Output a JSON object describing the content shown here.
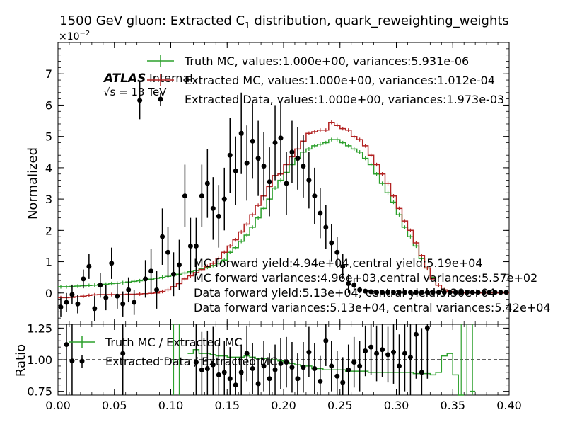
{
  "chart_data": [
    {
      "type": "line",
      "title": "1500 GeV gluon: Extracted C",
      "title_sub": "1",
      "title_rest": " distribution, quark_reweighting_weights",
      "ylabel": "Normalized",
      "y_exponent": "×10",
      "y_exponent_power": "−2",
      "xlim": [
        0.0,
        0.4
      ],
      "ylim": [
        -1.0,
        8.0
      ],
      "yticks": [
        0,
        1,
        2,
        3,
        4,
        5,
        6,
        7
      ],
      "ytick_labels": [
        "0",
        "1",
        "2",
        "3",
        "4",
        "5",
        "6",
        "7"
      ],
      "x": [
        0.0025,
        0.0075,
        0.0125,
        0.0175,
        0.0225,
        0.0275,
        0.0325,
        0.0375,
        0.0425,
        0.0475,
        0.0525,
        0.0575,
        0.0625,
        0.0675,
        0.0725,
        0.0775,
        0.0825,
        0.0875,
        0.0925,
        0.0975,
        0.1025,
        0.1075,
        0.1125,
        0.1175,
        0.1225,
        0.1275,
        0.1325,
        0.1375,
        0.1425,
        0.1475,
        0.1525,
        0.1575,
        0.1625,
        0.1675,
        0.1725,
        0.1775,
        0.1825,
        0.1875,
        0.1925,
        0.1975,
        0.2025,
        0.2075,
        0.2125,
        0.2175,
        0.2225,
        0.2275,
        0.2325,
        0.2375,
        0.2425,
        0.2475,
        0.2525,
        0.2575,
        0.2625,
        0.2675,
        0.2725,
        0.2775,
        0.2825,
        0.2875,
        0.2925,
        0.2975,
        0.3025,
        0.3075,
        0.3125,
        0.3175,
        0.3225,
        0.3275,
        0.3325,
        0.3375,
        0.3425,
        0.3475,
        0.3525,
        0.3575,
        0.3625,
        0.3675,
        0.3725,
        0.3775,
        0.3825,
        0.3875,
        0.3925,
        0.3975
      ],
      "series": [
        {
          "name": "Truth MC, values:1.000e+00, variances:5.931e-06",
          "color": "#2ca02c",
          "values": [
            0.2,
            0.2,
            0.21,
            0.22,
            0.23,
            0.24,
            0.25,
            0.27,
            0.28,
            0.3,
            0.31,
            0.33,
            0.35,
            0.37,
            0.39,
            0.42,
            0.44,
            0.47,
            0.5,
            0.53,
            0.57,
            0.6,
            0.64,
            0.68,
            0.72,
            0.77,
            0.82,
            0.88,
            0.95,
            1.05,
            1.3,
            1.45,
            1.65,
            1.85,
            2.1,
            2.4,
            2.7,
            3.0,
            3.35,
            3.6,
            3.85,
            4.1,
            4.3,
            4.5,
            4.6,
            4.7,
            4.75,
            4.8,
            4.9,
            4.9,
            4.8,
            4.7,
            4.6,
            4.5,
            4.3,
            4.1,
            3.8,
            3.5,
            3.2,
            2.9,
            2.5,
            2.1,
            1.8,
            1.5,
            1.1,
            0.8,
            0.5,
            0.25,
            0.1,
            0.05,
            0.02,
            0.0,
            0.0,
            0.0,
            0.0,
            0.0,
            0.0,
            0.0,
            0.0,
            0.0
          ]
        },
        {
          "name": "Extracted MC, values:1.000e+00, variances:1.012e-04",
          "color": "#b22222",
          "values": [
            -0.15,
            -0.15,
            -0.14,
            -0.12,
            -0.1,
            -0.08,
            -0.06,
            -0.05,
            -0.05,
            -0.05,
            -0.05,
            -0.05,
            -0.04,
            -0.04,
            -0.03,
            -0.02,
            -0.01,
            0.0,
            0.05,
            0.1,
            0.2,
            0.3,
            0.45,
            0.55,
            0.65,
            0.75,
            0.85,
            0.95,
            1.1,
            1.3,
            1.5,
            1.7,
            1.95,
            2.2,
            2.5,
            2.8,
            3.1,
            3.4,
            3.75,
            3.8,
            4.1,
            4.35,
            4.6,
            4.85,
            5.1,
            5.15,
            5.2,
            5.2,
            5.45,
            5.35,
            5.25,
            5.2,
            5.0,
            4.9,
            4.7,
            4.4,
            4.1,
            3.8,
            3.5,
            3.1,
            2.7,
            2.3,
            2.0,
            1.6,
            1.2,
            0.8,
            0.45,
            0.25,
            0.1,
            0.05,
            0.02,
            0.0,
            0.0,
            0.0,
            0.0,
            0.0,
            0.0,
            0.0,
            0.0,
            0.0
          ]
        },
        {
          "name": "Extracted Data, values:1.000e+00, variances:1.973e-03",
          "color": "#000000",
          "values": [
            -0.45,
            -0.3,
            -0.05,
            -0.35,
            0.45,
            0.85,
            -0.5,
            0.25,
            -0.15,
            0.95,
            -0.1,
            -0.35,
            0.1,
            -0.3,
            6.15,
            0.45,
            0.7,
            0.1,
            1.8,
            1.3,
            0.6,
            0.9,
            3.1,
            1.5,
            1.5,
            3.1,
            3.5,
            2.7,
            2.45,
            3.0,
            4.4,
            3.9,
            5.1,
            4.15,
            4.85,
            4.3,
            4.05,
            3.55,
            4.8,
            4.95,
            3.5,
            4.5,
            4.3,
            4.05,
            3.6,
            3.1,
            2.55,
            2.1,
            1.6,
            1.3,
            0.85,
            0.3,
            0.25,
            0.1,
            0.06,
            0.04,
            0.02,
            0.02,
            0.02,
            0.02,
            0.02,
            0.02,
            0.02,
            0.02,
            0.02,
            0.02,
            0.02,
            0.02,
            0.02,
            0.02,
            0.02,
            0.02,
            0.02,
            0.02,
            0.02,
            0.02,
            0.02,
            0.02,
            0.02,
            0.02
          ],
          "errors": [
            0.3,
            0.3,
            0.3,
            0.3,
            0.3,
            0.4,
            0.4,
            0.4,
            0.4,
            0.5,
            0.4,
            0.4,
            0.4,
            0.4,
            0.6,
            0.6,
            0.7,
            0.6,
            0.9,
            0.8,
            0.7,
            0.8,
            1.0,
            0.9,
            0.9,
            1.0,
            1.1,
            1.0,
            1.0,
            1.0,
            1.2,
            1.1,
            1.3,
            1.2,
            1.2,
            1.2,
            1.1,
            1.1,
            1.2,
            1.2,
            1.0,
            1.0,
            1.0,
            1.0,
            0.9,
            0.9,
            0.8,
            0.7,
            0.6,
            0.5,
            0.4,
            0.3,
            0.2,
            0.1,
            0.05,
            0.03,
            0.02,
            0.02,
            0.02,
            0.02,
            0.02,
            0.02,
            0.02,
            0.02,
            0.02,
            0.02,
            0.02,
            0.02,
            0.02,
            0.02,
            0.02,
            0.02,
            0.02,
            0.02,
            0.02,
            0.02,
            0.02,
            0.02,
            0.02,
            0.02
          ]
        }
      ],
      "legend_placement": "top-center",
      "atlas_label": "ATLAS",
      "atlas_sub": "Internal",
      "energy_label": "√s = 13 TeV",
      "annotations": [
        "MC forward yield:4.94e+04,central yield:5.19e+04",
        "MC forward variances:4.96e+03,central variances:5.57e+02",
        "Data forward yield:5.13e+04, central yield:5.30e+04",
        "Data forward variances:5.13e+04, central variances:5.42e+04"
      ]
    },
    {
      "type": "line",
      "ylabel": "Ratio",
      "xlabel": "",
      "xlim": [
        0.0,
        0.4
      ],
      "ylim": [
        0.72,
        1.28
      ],
      "yticks": [
        0.75,
        1.0,
        1.25
      ],
      "ytick_labels": [
        "0.75",
        "1.00",
        "1.25"
      ],
      "xticks": [
        0.0,
        0.05,
        0.1,
        0.15,
        0.2,
        0.25,
        0.3,
        0.35,
        0.4
      ],
      "xtick_labels": [
        "0.00",
        "0.05",
        "0.10",
        "0.15",
        "0.20",
        "0.25",
        "0.30",
        "0.35",
        "0.40"
      ],
      "reference_line": 1.0,
      "series": [
        {
          "name": "Truth MC / Extracted MC",
          "color": "#2ca02c",
          "values": [
            null,
            null,
            null,
            null,
            null,
            null,
            null,
            null,
            null,
            null,
            null,
            null,
            null,
            null,
            null,
            null,
            null,
            null,
            null,
            null,
            null,
            null,
            null,
            1.05,
            1.08,
            1.05,
            1.05,
            1.04,
            1.03,
            1.03,
            1.02,
            1.02,
            1.02,
            1.03,
            1.02,
            1.01,
            1.01,
            1.0,
            1.0,
            0.99,
            0.98,
            0.97,
            0.96,
            0.95,
            0.95,
            0.93,
            0.93,
            0.92,
            0.92,
            0.92,
            0.92,
            0.91,
            0.91,
            0.91,
            0.91,
            0.9,
            0.9,
            0.9,
            0.9,
            0.9,
            0.9,
            0.9,
            0.9,
            0.89,
            0.89,
            0.89,
            0.88,
            0.9,
            1.03,
            1.05,
            0.88,
            0.72,
            null,
            0.75,
            null,
            null,
            null,
            null,
            null,
            null
          ]
        },
        {
          "name": "Extracted Data / Extracted MC",
          "color": "#000000",
          "values": [
            null,
            1.12,
            0.99,
            null,
            null,
            null,
            null,
            null,
            null,
            null,
            null,
            1.05,
            null,
            null,
            null,
            null,
            null,
            null,
            null,
            null,
            null,
            null,
            null,
            null,
            0.98,
            0.92,
            0.93,
            0.96,
            0.88,
            0.9,
            0.85,
            0.8,
            0.9,
            1.05,
            0.93,
            0.81,
            0.95,
            0.85,
            0.92,
            0.97,
            0.98,
            0.94,
            0.85,
            0.94,
            1.06,
            0.93,
            0.83,
            1.15,
            0.95,
            0.87,
            0.82,
            0.92,
            0.98,
            0.95,
            1.07,
            1.1,
            1.05,
            1.08,
            1.04,
            1.06,
            0.95,
            1.05,
            1.02,
            1.2,
            0.9,
            1.25,
            null,
            null,
            null,
            null,
            null,
            null,
            null,
            null,
            null,
            null,
            null,
            null,
            null,
            null
          ],
          "errors": [
            null,
            0.4,
            0.4,
            null,
            null,
            null,
            null,
            null,
            null,
            null,
            null,
            0.4,
            null,
            null,
            null,
            null,
            null,
            null,
            null,
            null,
            null,
            null,
            null,
            null,
            0.35,
            0.3,
            0.3,
            0.3,
            0.25,
            0.25,
            0.25,
            0.22,
            0.22,
            0.22,
            0.2,
            0.2,
            0.2,
            0.2,
            0.2,
            0.2,
            0.2,
            0.2,
            0.2,
            0.2,
            0.2,
            0.2,
            0.2,
            0.2,
            0.2,
            0.2,
            0.2,
            0.2,
            0.2,
            0.2,
            0.2,
            0.22,
            0.22,
            0.22,
            0.22,
            0.25,
            0.25,
            0.3,
            0.3,
            0.35,
            0.35,
            0.4,
            null,
            null,
            null,
            null,
            null,
            null,
            null,
            null,
            null,
            null,
            null,
            null,
            null,
            null
          ]
        }
      ]
    }
  ]
}
